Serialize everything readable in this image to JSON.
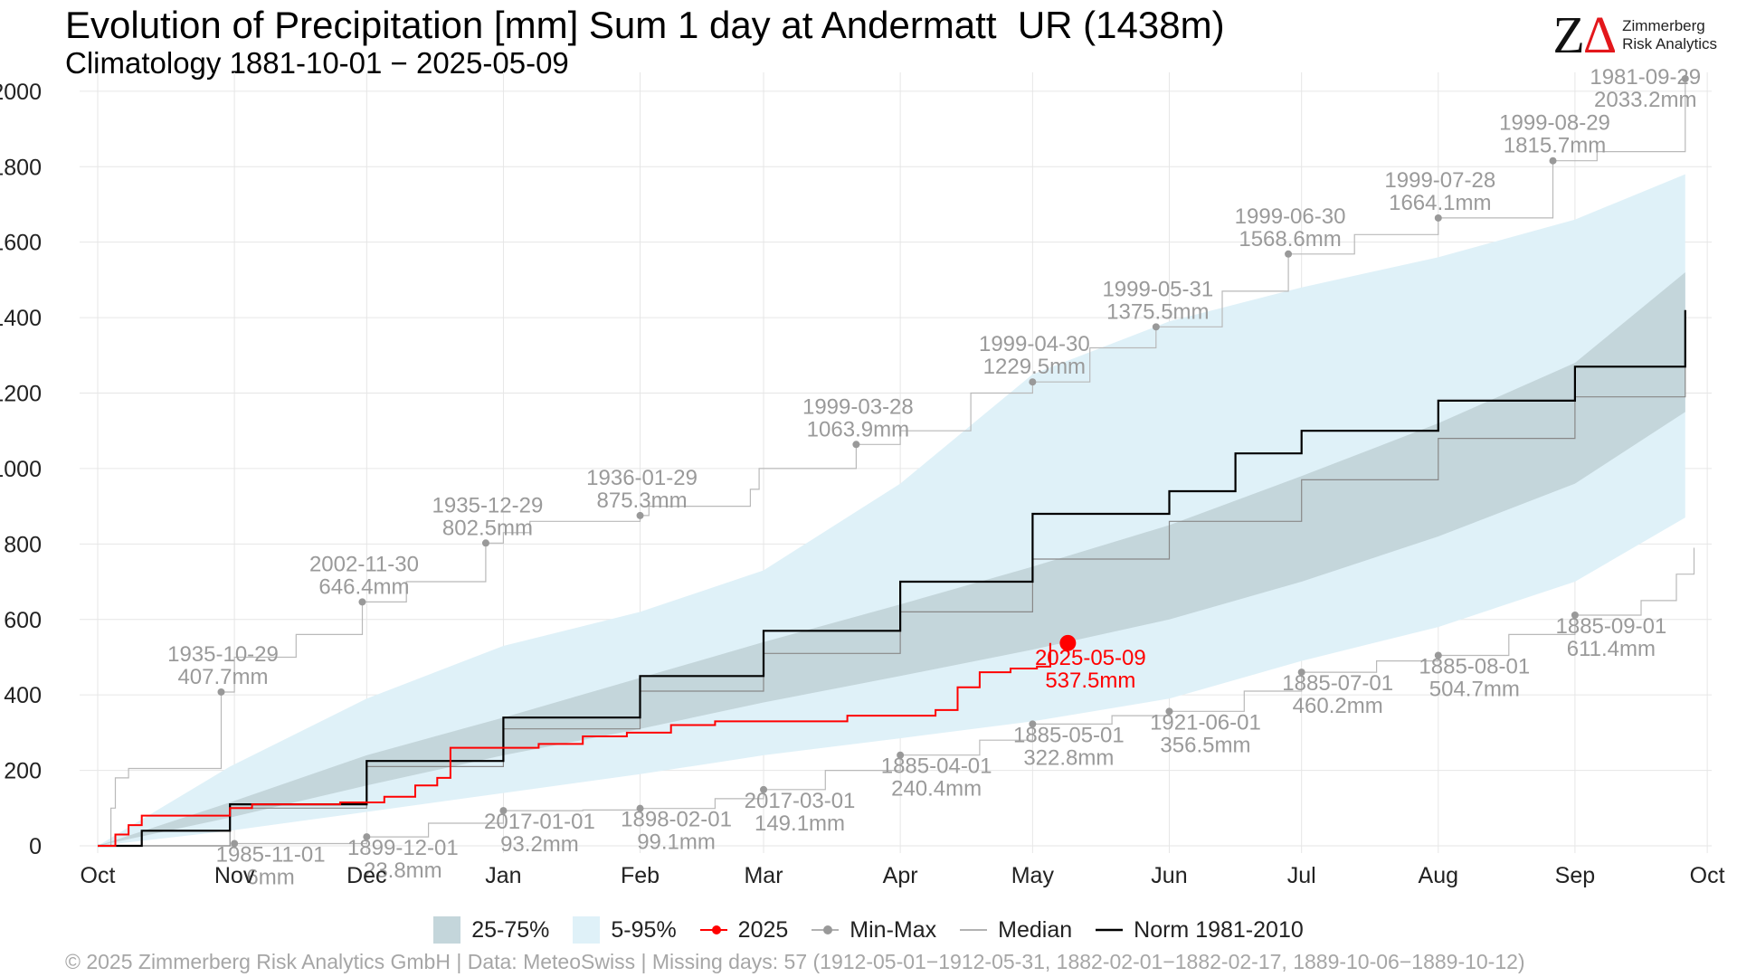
{
  "title": "Evolution of Precipitation [mm] Sum 1 day at Andermatt  UR (1438m)",
  "subtitle": "Climatology 1881-10-01 − 2025-05-09",
  "logo": {
    "mark_left": "Z",
    "mark_right": "Δ",
    "line1": "Zimmerberg",
    "line2": "Risk Analytics"
  },
  "legend": {
    "items": [
      {
        "label": "25-75%",
        "color": "#c4d6db",
        "kind": "box"
      },
      {
        "label": "5-95%",
        "color": "#dff1f8",
        "kind": "box"
      },
      {
        "label": "2025",
        "color": "#ff0000",
        "kind": "line-dot"
      },
      {
        "label": "Min-Max",
        "color": "#999999",
        "kind": "line-dot"
      },
      {
        "label": "Median",
        "color": "#999999",
        "kind": "line"
      },
      {
        "label": "Norm 1981-2010",
        "color": "#000000",
        "kind": "line"
      }
    ]
  },
  "footer": "©  2025 Zimmerberg Risk Analytics GmbH | Data: MeteoSwiss | Missing days: 57 (1912-05-01−1912-05-31, 1882-02-01−1882-02-17, 1889-10-06−1889-10-12)",
  "chart_data": {
    "type": "area",
    "xlabel": "",
    "ylabel": "",
    "x_domain_days": [
      0,
      366
    ],
    "ylim": [
      0,
      2050
    ],
    "y_ticks": [
      0,
      200,
      400,
      600,
      800,
      1000,
      1200,
      1400,
      1600,
      1800,
      2000
    ],
    "x_ticks": [
      {
        "label": "Oct",
        "day": 0
      },
      {
        "label": "Nov",
        "day": 31
      },
      {
        "label": "Dec",
        "day": 61
      },
      {
        "label": "Jan",
        "day": 92
      },
      {
        "label": "Feb",
        "day": 123
      },
      {
        "label": "Mar",
        "day": 151
      },
      {
        "label": "Apr",
        "day": 182
      },
      {
        "label": "May",
        "day": 212
      },
      {
        "label": "Jun",
        "day": 243
      },
      {
        "label": "Jul",
        "day": 273
      },
      {
        "label": "Aug",
        "day": 304
      },
      {
        "label": "Sep",
        "day": 335
      },
      {
        "label": "Oct",
        "day": 365
      }
    ],
    "grid": true,
    "legend_position": "bottom",
    "colors": {
      "band_5_95": "#dff1f8",
      "band_25_75": "#c4d6db",
      "current": "#ff0000",
      "minmax": "#999999",
      "median": "#888888",
      "norm": "#000000",
      "grid": "#e6e6e6",
      "label": "#9a9a9a"
    },
    "bands": {
      "x_days": [
        0,
        30,
        61,
        92,
        123,
        151,
        182,
        212,
        243,
        273,
        304,
        335,
        360
      ],
      "p05": [
        0,
        40,
        90,
        140,
        190,
        240,
        285,
        330,
        390,
        490,
        580,
        700,
        870
      ],
      "p25": [
        0,
        75,
        160,
        240,
        310,
        380,
        450,
        520,
        600,
        700,
        820,
        960,
        1150
      ],
      "p75": [
        0,
        115,
        240,
        340,
        445,
        540,
        640,
        740,
        850,
        980,
        1120,
        1280,
        1520
      ],
      "p95": [
        0,
        210,
        390,
        530,
        620,
        730,
        960,
        1250,
        1390,
        1480,
        1560,
        1660,
        1780
      ]
    },
    "series": [
      {
        "name": "Norm 1981-2010",
        "x_days": [
          0,
          10,
          30,
          61,
          92,
          123,
          151,
          182,
          212,
          243,
          258,
          273,
          304,
          335,
          360
        ],
        "values": [
          0,
          40,
          110,
          225,
          340,
          450,
          570,
          700,
          880,
          940,
          1040,
          1100,
          1180,
          1270,
          1420
        ]
      },
      {
        "name": "Median",
        "x_days": [
          0,
          30,
          61,
          92,
          123,
          151,
          182,
          212,
          243,
          273,
          304,
          335,
          360
        ],
        "values": [
          0,
          100,
          210,
          310,
          410,
          510,
          620,
          760,
          860,
          970,
          1080,
          1190,
          1340
        ]
      },
      {
        "name": "2025",
        "x_days": [
          0,
          4,
          7,
          10,
          30,
          35,
          55,
          65,
          72,
          77,
          80,
          100,
          110,
          120,
          130,
          140,
          160,
          170,
          190,
          195,
          200,
          207,
          213,
          216
        ],
        "values": [
          0,
          30,
          55,
          80,
          100,
          110,
          115,
          130,
          160,
          180,
          260,
          270,
          290,
          300,
          320,
          330,
          330,
          345,
          360,
          420,
          460,
          470,
          475,
          537.5
        ]
      },
      {
        "name": "Max",
        "x_days": [
          0,
          3,
          4,
          7,
          28,
          31,
          45,
          60,
          70,
          88,
          92,
          98,
          123,
          125,
          148,
          150,
          172,
          182,
          198,
          212,
          225,
          240,
          255,
          270,
          285,
          304,
          330,
          340,
          360
        ],
        "values": [
          0,
          100,
          180,
          205,
          407.7,
          500,
          560,
          646.4,
          700,
          802.5,
          830,
          860,
          875.3,
          900,
          945,
          1000,
          1063.9,
          1100,
          1200,
          1229.5,
          1320,
          1375.5,
          1470,
          1568.6,
          1620,
          1664.1,
          1815.7,
          1840,
          2033.2
        ]
      },
      {
        "name": "Min",
        "x_days": [
          0,
          31,
          61,
          75,
          92,
          110,
          123,
          140,
          151,
          165,
          182,
          200,
          212,
          230,
          243,
          260,
          273,
          290,
          304,
          320,
          335,
          350,
          358,
          362
        ],
        "values": [
          0,
          6,
          23.8,
          60,
          93.2,
          95,
          99.1,
          125,
          149.1,
          200,
          240.4,
          280,
          322.8,
          345,
          356.5,
          410,
          460.2,
          490,
          504.7,
          560,
          611.4,
          650,
          720,
          790
        ]
      }
    ],
    "annotations": [
      {
        "series": "Max",
        "date": "1935-10-29",
        "value": "407.7mm",
        "x_day": 28,
        "y": 407.7
      },
      {
        "series": "Max",
        "date": "2002-11-30",
        "value": "646.4mm",
        "x_day": 60,
        "y": 646.4
      },
      {
        "series": "Max",
        "date": "1935-12-29",
        "value": "802.5mm",
        "x_day": 88,
        "y": 802.5
      },
      {
        "series": "Max",
        "date": "1936-01-29",
        "value": "875.3mm",
        "x_day": 123,
        "y": 875.3
      },
      {
        "series": "Max",
        "date": "1999-03-28",
        "value": "1063.9mm",
        "x_day": 172,
        "y": 1063.9
      },
      {
        "series": "Max",
        "date": "1999-04-30",
        "value": "1229.5mm",
        "x_day": 212,
        "y": 1229.5
      },
      {
        "series": "Max",
        "date": "1999-05-31",
        "value": "1375.5mm",
        "x_day": 240,
        "y": 1375.5
      },
      {
        "series": "Max",
        "date": "1999-06-30",
        "value": "1568.6mm",
        "x_day": 270,
        "y": 1568.6
      },
      {
        "series": "Max",
        "date": "1999-07-28",
        "value": "1664.1mm",
        "x_day": 304,
        "y": 1664.1
      },
      {
        "series": "Max",
        "date": "1999-08-29",
        "value": "1815.7mm",
        "x_day": 330,
        "y": 1815.7
      },
      {
        "series": "Max",
        "date": "1981-09-29",
        "value": "2033.2mm",
        "x_day": 360,
        "y": 2033.2
      },
      {
        "series": "Min",
        "date": "1985-11-01",
        "value": "6mm",
        "x_day": 31,
        "y": 6
      },
      {
        "series": "Min",
        "date": "1899-12-01",
        "value": "23.8mm",
        "x_day": 61,
        "y": 23.8
      },
      {
        "series": "Min",
        "date": "2017-01-01",
        "value": "93.2mm",
        "x_day": 92,
        "y": 93.2
      },
      {
        "series": "Min",
        "date": "1898-02-01",
        "value": "99.1mm",
        "x_day": 123,
        "y": 99.1
      },
      {
        "series": "Min",
        "date": "2017-03-01",
        "value": "149.1mm",
        "x_day": 151,
        "y": 149.1
      },
      {
        "series": "Min",
        "date": "1885-04-01",
        "value": "240.4mm",
        "x_day": 182,
        "y": 240.4
      },
      {
        "series": "Min",
        "date": "1885-05-01",
        "value": "322.8mm",
        "x_day": 212,
        "y": 322.8
      },
      {
        "series": "Min",
        "date": "1921-06-01",
        "value": "356.5mm",
        "x_day": 243,
        "y": 356.5
      },
      {
        "series": "Min",
        "date": "1885-07-01",
        "value": "460.2mm",
        "x_day": 273,
        "y": 460.2
      },
      {
        "series": "Min",
        "date": "1885-08-01",
        "value": "504.7mm",
        "x_day": 304,
        "y": 504.7
      },
      {
        "series": "Min",
        "date": "1885-09-01",
        "value": "611.4mm",
        "x_day": 335,
        "y": 611.4
      },
      {
        "series": "2025",
        "date": "2025-05-09",
        "value": "537.5mm",
        "x_day": 220,
        "y": 537.5
      }
    ]
  }
}
